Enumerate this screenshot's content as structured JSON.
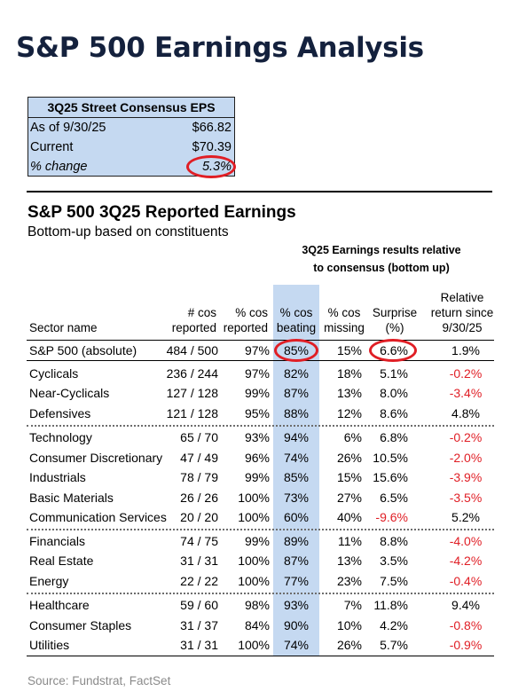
{
  "title": "S&P 500 Earnings Analysis",
  "consensus": {
    "header": "3Q25 Street Consensus EPS",
    "rows": [
      {
        "label": "As of 9/30/25",
        "value": "$66.82"
      },
      {
        "label": "Current",
        "value": "$70.39"
      },
      {
        "label": "% change",
        "value": "5.3%"
      }
    ]
  },
  "section": {
    "title": "S&P 500 3Q25 Reported Earnings",
    "subtitle": "Bottom-up based on constituents",
    "relative_header_1": "3Q25 Earnings results relative",
    "relative_header_2": "to consensus (bottom up)"
  },
  "columns": {
    "sector": "Sector name",
    "reported_1": "# cos",
    "reported_2": "reported",
    "pct_reported_1": "% cos",
    "pct_reported_2": "reported",
    "beating_1": "% cos",
    "beating_2": "beating",
    "missing_1": "% cos",
    "missing_2": "missing",
    "surprise_1": "Surprise",
    "surprise_2": "(%)",
    "relret_1": "Relative",
    "relret_2": "return since",
    "relret_3": "9/30/25"
  },
  "rows": [
    {
      "name": "S&P 500 (absolute)",
      "reported": "484 / 500",
      "pct_reported": "97%",
      "beating": "85%",
      "missing": "15%",
      "surprise": "6.6%",
      "relret": "1.9%"
    },
    {
      "name": "Cyclicals",
      "reported": "236 / 244",
      "pct_reported": "97%",
      "beating": "82%",
      "missing": "18%",
      "surprise": "5.1%",
      "relret": "-0.2%"
    },
    {
      "name": "Near-Cyclicals",
      "reported": "127 / 128",
      "pct_reported": "99%",
      "beating": "87%",
      "missing": "13%",
      "surprise": "8.0%",
      "relret": "-3.4%"
    },
    {
      "name": "Defensives",
      "reported": "121 / 128",
      "pct_reported": "95%",
      "beating": "88%",
      "missing": "12%",
      "surprise": "8.6%",
      "relret": "4.8%"
    },
    {
      "name": "Technology",
      "reported": "65 / 70",
      "pct_reported": "93%",
      "beating": "94%",
      "missing": "6%",
      "surprise": "6.8%",
      "relret": "-0.2%"
    },
    {
      "name": "Consumer Discretionary",
      "reported": "47 / 49",
      "pct_reported": "96%",
      "beating": "74%",
      "missing": "26%",
      "surprise": "10.5%",
      "relret": "-2.0%"
    },
    {
      "name": "Industrials",
      "reported": "78 / 79",
      "pct_reported": "99%",
      "beating": "85%",
      "missing": "15%",
      "surprise": "15.6%",
      "relret": "-3.9%"
    },
    {
      "name": "Basic Materials",
      "reported": "26 / 26",
      "pct_reported": "100%",
      "beating": "73%",
      "missing": "27%",
      "surprise": "6.5%",
      "relret": "-3.5%"
    },
    {
      "name": "Communication Services",
      "reported": "20 / 20",
      "pct_reported": "100%",
      "beating": "60%",
      "missing": "40%",
      "surprise": "-9.6%",
      "relret": "5.2%"
    },
    {
      "name": "Financials",
      "reported": "74 / 75",
      "pct_reported": "99%",
      "beating": "89%",
      "missing": "11%",
      "surprise": "8.8%",
      "relret": "-4.0%"
    },
    {
      "name": "Real Estate",
      "reported": "31 / 31",
      "pct_reported": "100%",
      "beating": "87%",
      "missing": "13%",
      "surprise": "3.5%",
      "relret": "-4.2%"
    },
    {
      "name": "Energy",
      "reported": "22 / 22",
      "pct_reported": "100%",
      "beating": "77%",
      "missing": "23%",
      "surprise": "7.5%",
      "relret": "-0.4%"
    },
    {
      "name": "Healthcare",
      "reported": "59 / 60",
      "pct_reported": "98%",
      "beating": "93%",
      "missing": "7%",
      "surprise": "11.8%",
      "relret": "9.4%"
    },
    {
      "name": "Consumer Staples",
      "reported": "31 / 37",
      "pct_reported": "84%",
      "beating": "90%",
      "missing": "10%",
      "surprise": "4.2%",
      "relret": "-0.8%"
    },
    {
      "name": "Utilities",
      "reported": "31 / 31",
      "pct_reported": "100%",
      "beating": "74%",
      "missing": "26%",
      "surprise": "5.7%",
      "relret": "-0.9%"
    }
  ],
  "source": "Source: Fundstrat, FactSet",
  "colors": {
    "highlight_fill": "#c5d9f1",
    "negative": "#e01e25",
    "circle": "#e01e25",
    "title": "#14213d"
  }
}
